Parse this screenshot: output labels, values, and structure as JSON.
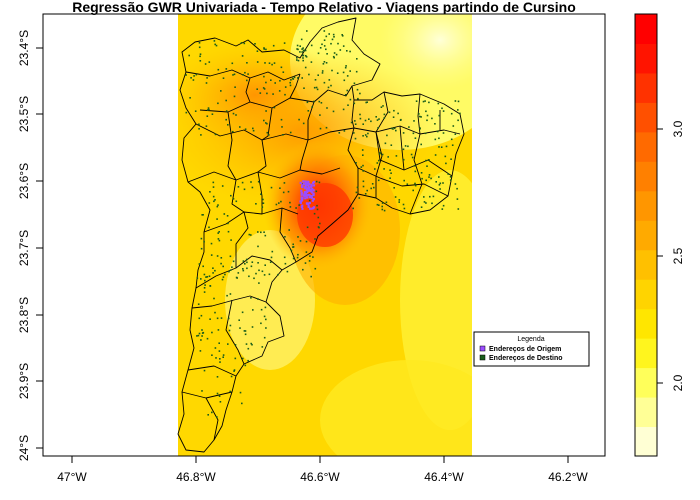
{
  "map": {
    "title": "Regressão GWR Univariada - Tempo Relativo - Viagens partindo de Cursino",
    "x_ticks": [
      "47°W",
      "46.8°W",
      "46.6°W",
      "46.4°W",
      "46.2°W"
    ],
    "y_ticks": [
      "23.4°S",
      "23.5°S",
      "23.6°S",
      "23.7°S",
      "23.8°S",
      "23.9°S",
      "24°S"
    ],
    "legend": {
      "title": "Legenda",
      "items": [
        {
          "label": "Endereços de Origem",
          "color": "#9b4dff"
        },
        {
          "label": "Endereços de Destino",
          "color": "#1a5e1a"
        }
      ]
    },
    "colorbar": {
      "ticks": [
        "2.0",
        "2.5",
        "3.0"
      ],
      "colors": [
        "#ffffd4",
        "#ffff96",
        "#ffff5a",
        "#fff51e",
        "#ffe600",
        "#ffd400",
        "#ffc000",
        "#ffaa00",
        "#ff9600",
        "#ff8000",
        "#ff6a00",
        "#ff5000",
        "#ff3200",
        "#ff1400",
        "#ff0000"
      ]
    },
    "colors": {
      "district_border": "#000000",
      "origin": "#9b4dff",
      "destination": "#1a5e1a"
    }
  }
}
